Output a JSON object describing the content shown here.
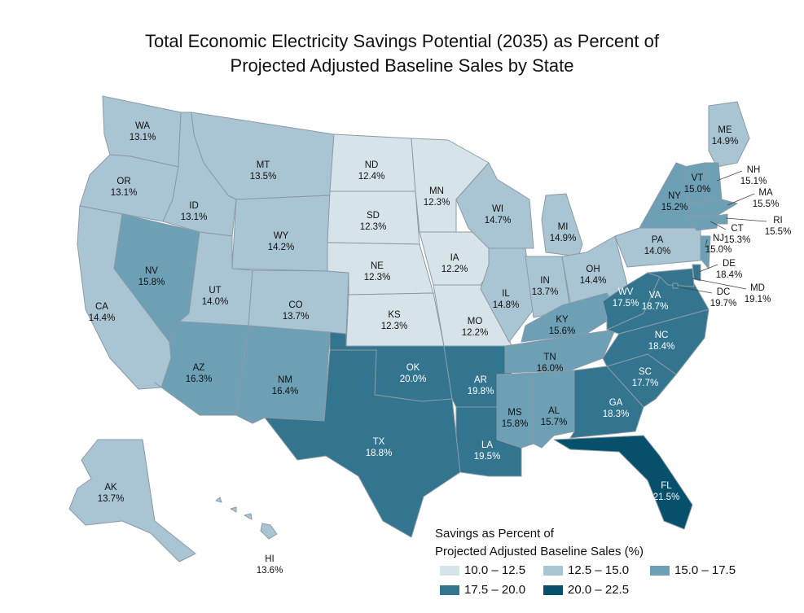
{
  "title": {
    "line1": "Total Economic Electricity Savings Potential (2035) as Percent of",
    "line2": "Projected Adjusted Baseline Sales by State"
  },
  "legend": {
    "title_line1": "Savings as Percent of",
    "title_line2": "Projected Adjusted Baseline Sales (%)",
    "bins": [
      {
        "label": "10.0 – 12.5",
        "color": "#d6e4ea"
      },
      {
        "label": "12.5 – 15.0",
        "color": "#a9c4d2"
      },
      {
        "label": "15.0 – 17.5",
        "color": "#6d9fb5"
      },
      {
        "label": "17.5 – 20.0",
        "color": "#33748f"
      },
      {
        "label": "20.0 – 22.5",
        "color": "#07506c"
      }
    ]
  },
  "states": [
    {
      "id": "WA",
      "value": "13.1%",
      "bin": 1
    },
    {
      "id": "OR",
      "value": "13.1%",
      "bin": 1
    },
    {
      "id": "CA",
      "value": "14.4%",
      "bin": 1
    },
    {
      "id": "ID",
      "value": "13.1%",
      "bin": 1
    },
    {
      "id": "NV",
      "value": "15.8%",
      "bin": 2
    },
    {
      "id": "MT",
      "value": "13.5%",
      "bin": 1
    },
    {
      "id": "WY",
      "value": "14.2%",
      "bin": 1
    },
    {
      "id": "UT",
      "value": "14.0%",
      "bin": 1
    },
    {
      "id": "AZ",
      "value": "16.3%",
      "bin": 2
    },
    {
      "id": "CO",
      "value": "13.7%",
      "bin": 1
    },
    {
      "id": "NM",
      "value": "16.4%",
      "bin": 2
    },
    {
      "id": "ND",
      "value": "12.4%",
      "bin": 0
    },
    {
      "id": "SD",
      "value": "12.3%",
      "bin": 0
    },
    {
      "id": "NE",
      "value": "12.3%",
      "bin": 0
    },
    {
      "id": "KS",
      "value": "12.3%",
      "bin": 0
    },
    {
      "id": "OK",
      "value": "20.0%",
      "bin": 3
    },
    {
      "id": "TX",
      "value": "18.8%",
      "bin": 3
    },
    {
      "id": "MN",
      "value": "12.3%",
      "bin": 0
    },
    {
      "id": "IA",
      "value": "12.2%",
      "bin": 0
    },
    {
      "id": "MO",
      "value": "12.2%",
      "bin": 0
    },
    {
      "id": "AR",
      "value": "19.8%",
      "bin": 3
    },
    {
      "id": "LA",
      "value": "19.5%",
      "bin": 3
    },
    {
      "id": "WI",
      "value": "14.7%",
      "bin": 1
    },
    {
      "id": "IL",
      "value": "14.8%",
      "bin": 1
    },
    {
      "id": "MI",
      "value": "14.9%",
      "bin": 1
    },
    {
      "id": "IN",
      "value": "13.7%",
      "bin": 1
    },
    {
      "id": "OH",
      "value": "14.4%",
      "bin": 1
    },
    {
      "id": "KY",
      "value": "15.6%",
      "bin": 2
    },
    {
      "id": "TN",
      "value": "16.0%",
      "bin": 2
    },
    {
      "id": "MS",
      "value": "15.8%",
      "bin": 2
    },
    {
      "id": "AL",
      "value": "15.7%",
      "bin": 2
    },
    {
      "id": "GA",
      "value": "18.3%",
      "bin": 3
    },
    {
      "id": "FL",
      "value": "21.5%",
      "bin": 4
    },
    {
      "id": "SC",
      "value": "17.7%",
      "bin": 3
    },
    {
      "id": "NC",
      "value": "18.4%",
      "bin": 3
    },
    {
      "id": "VA",
      "value": "18.7%",
      "bin": 3
    },
    {
      "id": "WV",
      "value": "17.5%",
      "bin": 3
    },
    {
      "id": "PA",
      "value": "14.0%",
      "bin": 1
    },
    {
      "id": "NY",
      "value": "15.2%",
      "bin": 2
    },
    {
      "id": "ME",
      "value": "14.9%",
      "bin": 1
    },
    {
      "id": "VT",
      "value": "15.0%",
      "bin": 2
    },
    {
      "id": "NH",
      "value": "15.1%",
      "bin": 2
    },
    {
      "id": "MA",
      "value": "15.5%",
      "bin": 2
    },
    {
      "id": "RI",
      "value": "15.5%",
      "bin": 2
    },
    {
      "id": "CT",
      "value": "15.3%",
      "bin": 2
    },
    {
      "id": "NJ",
      "value": "15.0%",
      "bin": 2
    },
    {
      "id": "DE",
      "value": "18.4%",
      "bin": 3
    },
    {
      "id": "MD",
      "value": "19.1%",
      "bin": 3
    },
    {
      "id": "DC",
      "value": "19.7%",
      "bin": 3
    },
    {
      "id": "AK",
      "value": "13.7%",
      "bin": 1
    },
    {
      "id": "HI",
      "value": "13.6%",
      "bin": 1
    }
  ]
}
